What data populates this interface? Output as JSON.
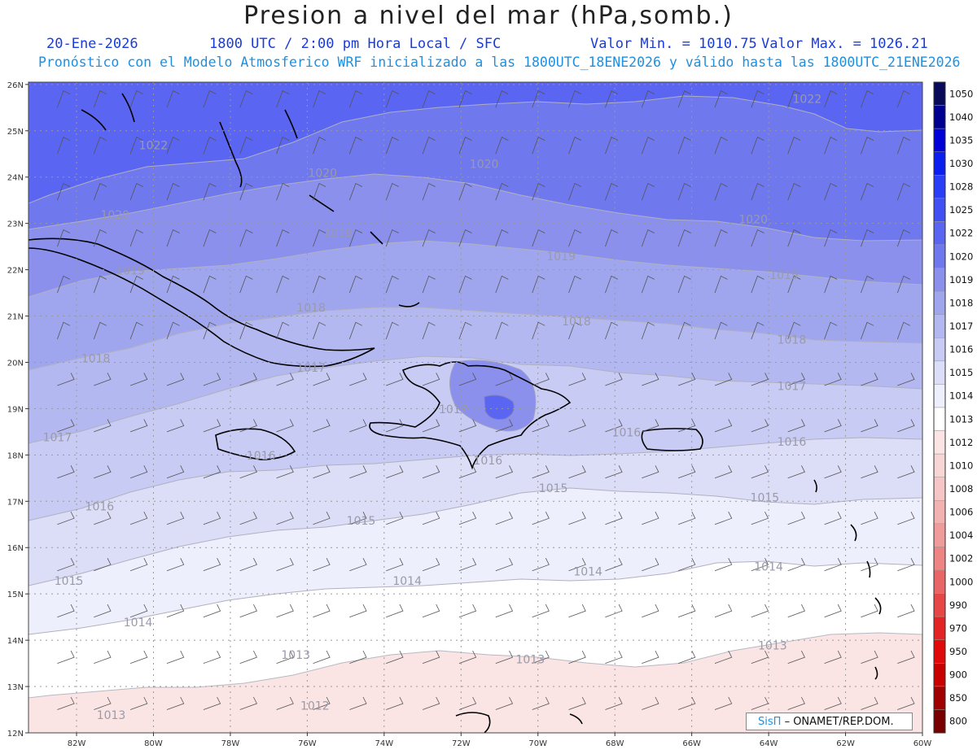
{
  "header": {
    "title": "Presion a nivel del mar (hPa,somb.)",
    "date": "20-Ene-2026",
    "time": "1800 UTC / 2:00 pm Hora Local / SFC",
    "min": "Valor Min. = 1010.75",
    "max": "Valor Max. = 1026.21",
    "forecast": "Pronóstico con el Modelo Atmosferico WRF inicializado a las 1800UTC_18ENE2026 y válido hasta las  1800UTC_21ENE2026"
  },
  "axes": {
    "lat_labels": [
      "26N",
      "25N",
      "24N",
      "23N",
      "22N",
      "21N",
      "20N",
      "19N",
      "18N",
      "17N",
      "16N",
      "15N",
      "14N",
      "13N",
      "12N"
    ],
    "lon_labels": [
      "82W",
      "80W",
      "78W",
      "76W",
      "74W",
      "72W",
      "70W",
      "68W",
      "66W",
      "64W",
      "62W",
      "60W"
    ]
  },
  "contour_labels": [
    {
      "text": "1022",
      "lon": -80.0,
      "lat": 24.6
    },
    {
      "text": "1022",
      "lon": -63.0,
      "lat": 25.6
    },
    {
      "text": "1020",
      "lon": -81.0,
      "lat": 23.1
    },
    {
      "text": "1020",
      "lon": -75.6,
      "lat": 24.0
    },
    {
      "text": "1020",
      "lon": -71.4,
      "lat": 24.2
    },
    {
      "text": "1020",
      "lon": -64.4,
      "lat": 23.0
    },
    {
      "text": "1019",
      "lon": -80.6,
      "lat": 21.9
    },
    {
      "text": "1019",
      "lon": -75.2,
      "lat": 22.7
    },
    {
      "text": "1019",
      "lon": -69.4,
      "lat": 22.2
    },
    {
      "text": "1019",
      "lon": -63.6,
      "lat": 21.8
    },
    {
      "text": "1018",
      "lon": -81.5,
      "lat": 20.0
    },
    {
      "text": "1018",
      "lon": -75.9,
      "lat": 21.1
    },
    {
      "text": "1018",
      "lon": -69.0,
      "lat": 20.8
    },
    {
      "text": "1018",
      "lon": -63.4,
      "lat": 20.4
    },
    {
      "text": "1017",
      "lon": -82.5,
      "lat": 18.3
    },
    {
      "text": "1017",
      "lon": -75.9,
      "lat": 19.8
    },
    {
      "text": "1017",
      "lon": -72.2,
      "lat": 18.9
    },
    {
      "text": "1017",
      "lon": -63.4,
      "lat": 19.4
    },
    {
      "text": "1016",
      "lon": -81.4,
      "lat": 16.8
    },
    {
      "text": "1016",
      "lon": -77.2,
      "lat": 17.9
    },
    {
      "text": "1016",
      "lon": -71.3,
      "lat": 17.8
    },
    {
      "text": "1016",
      "lon": -67.7,
      "lat": 18.4
    },
    {
      "text": "1016",
      "lon": -63.4,
      "lat": 18.2
    },
    {
      "text": "1015",
      "lon": -82.2,
      "lat": 15.2
    },
    {
      "text": "1015",
      "lon": -74.6,
      "lat": 16.5
    },
    {
      "text": "1015",
      "lon": -69.6,
      "lat": 17.2
    },
    {
      "text": "1015",
      "lon": -64.1,
      "lat": 17.0
    },
    {
      "text": "1014",
      "lon": -80.4,
      "lat": 14.3
    },
    {
      "text": "1014",
      "lon": -73.4,
      "lat": 15.2
    },
    {
      "text": "1014",
      "lon": -68.7,
      "lat": 15.4
    },
    {
      "text": "1014",
      "lon": -64.0,
      "lat": 15.5
    },
    {
      "text": "1013",
      "lon": -76.3,
      "lat": 13.6
    },
    {
      "text": "1013",
      "lon": -70.2,
      "lat": 13.5
    },
    {
      "text": "1013",
      "lon": -63.9,
      "lat": 13.8
    },
    {
      "text": "1012",
      "lon": -75.8,
      "lat": 12.5
    },
    {
      "text": "1013",
      "lon": -81.1,
      "lat": 12.3
    }
  ],
  "colorbar": {
    "labels": [
      "1050",
      "1040",
      "1035",
      "1030",
      "1028",
      "1025",
      "1022",
      "1020",
      "1019",
      "1018",
      "1017",
      "1016",
      "1015",
      "1014",
      "1013",
      "1012",
      "1010",
      "1008",
      "1006",
      "1004",
      "1002",
      "1000",
      "990",
      "970",
      "950",
      "900",
      "850",
      "800"
    ],
    "colors": [
      "#0a0a5a",
      "#000090",
      "#0000d8",
      "#0a1ef0",
      "#2a3ef8",
      "#4050f5",
      "#5a66f2",
      "#7078ee",
      "#8a90ec",
      "#a0a6ee",
      "#b4b8f0",
      "#c8cbf4",
      "#dcdef8",
      "#eeeffc",
      "#ffffff",
      "#fbe4e4",
      "#f8d6d6",
      "#f6c6c6",
      "#f3b2b2",
      "#f19c9c",
      "#ee8484",
      "#ea6666",
      "#e64646",
      "#e42424",
      "#e00a0a",
      "#c80000",
      "#a00000",
      "#780000"
    ]
  },
  "credit": {
    "brand": "SisΠ",
    "text": "– ONAMET/REP.DOM."
  }
}
